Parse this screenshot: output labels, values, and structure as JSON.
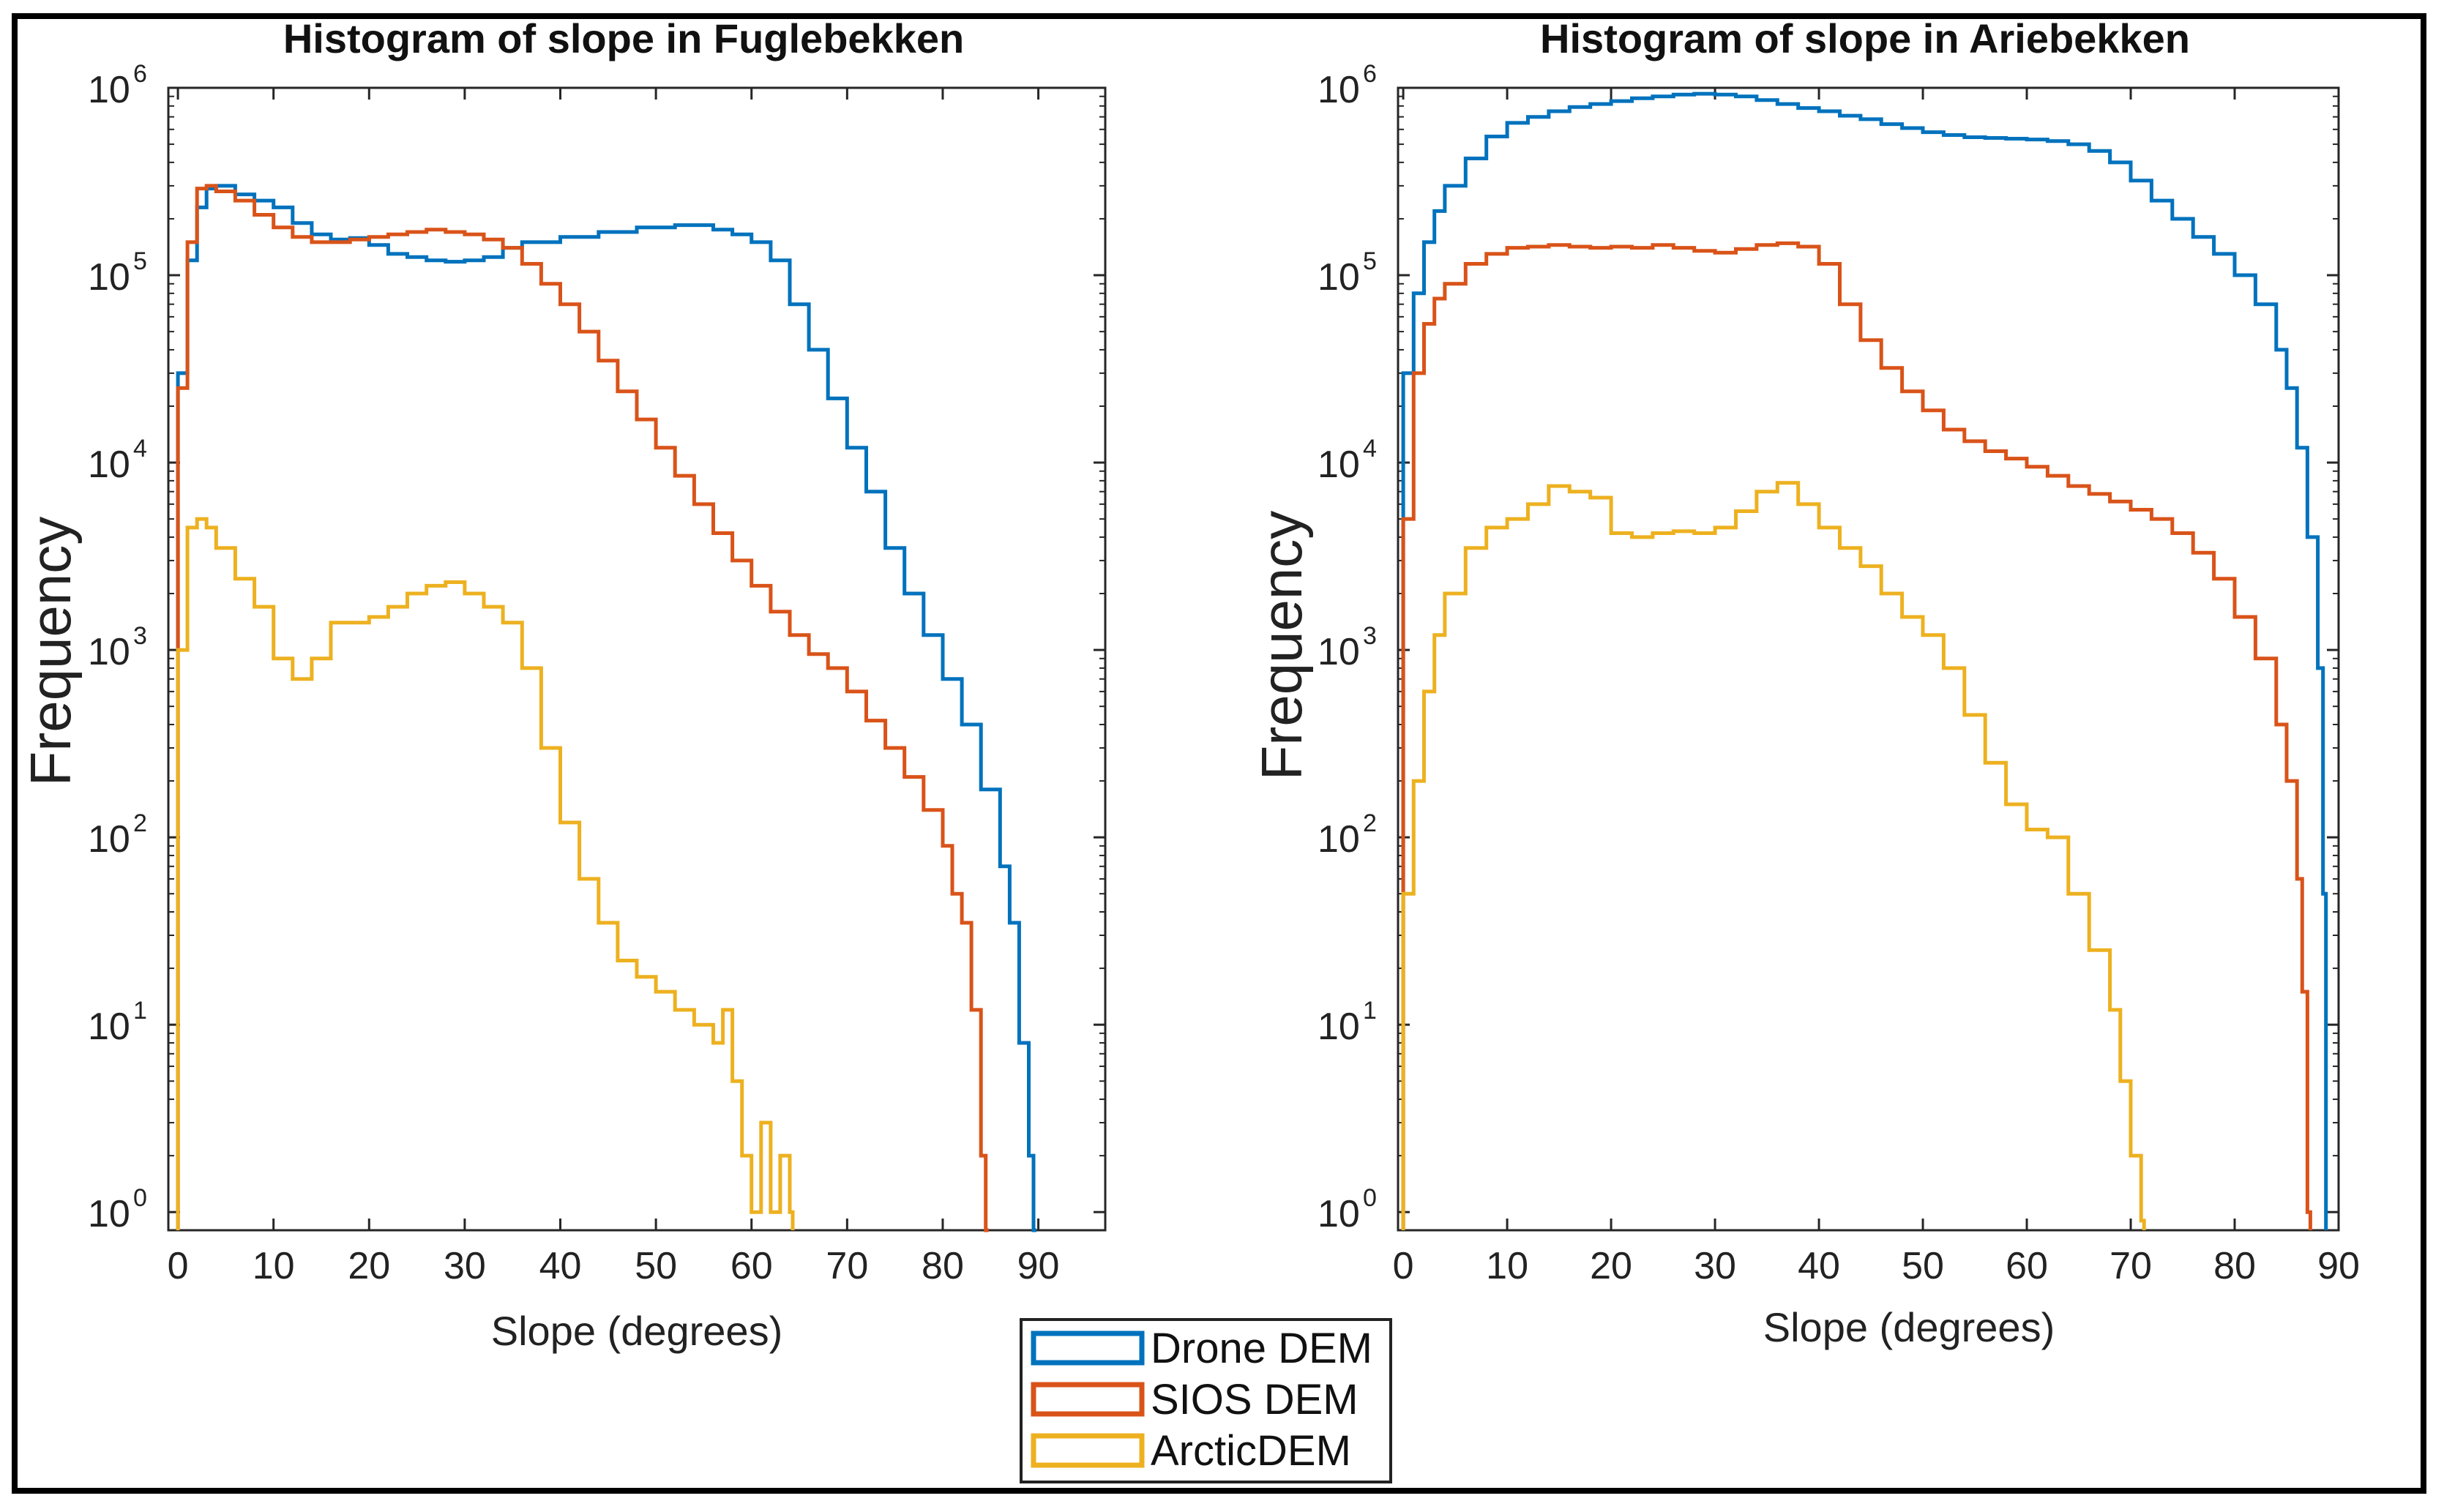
{
  "chart_data": [
    {
      "type": "histogram",
      "title": "Histogram of slope in Fuglebekken",
      "xlabel": "Slope (degrees)",
      "ylabel": "Frequency",
      "yscale": "log",
      "xlim": [
        -1,
        97
      ],
      "ylim": [
        0.8,
        1000000
      ],
      "xticks": [
        0,
        10,
        20,
        30,
        40,
        50,
        60,
        70,
        80,
        90
      ],
      "yticks": [
        {
          "base": "10",
          "exp": "0",
          "value": 1
        },
        {
          "base": "10",
          "exp": "1",
          "value": 10
        },
        {
          "base": "10",
          "exp": "2",
          "value": 100
        },
        {
          "base": "10",
          "exp": "3",
          "value": 1000
        },
        {
          "base": "10",
          "exp": "4",
          "value": 10000
        },
        {
          "base": "10",
          "exp": "5",
          "value": 100000
        },
        {
          "base": "10",
          "exp": "6",
          "value": 1000000
        }
      ],
      "series": [
        {
          "name": "Drone DEM",
          "color": "#0072BD",
          "x": [
            0,
            1,
            2,
            3,
            4,
            6,
            8,
            10,
            12,
            14,
            16,
            18,
            20,
            22,
            24,
            26,
            28,
            30,
            32,
            34,
            36,
            40,
            44,
            48,
            52,
            56,
            58,
            60,
            62,
            64,
            66,
            68,
            70,
            72,
            74,
            76,
            78,
            80,
            82,
            84,
            86,
            87,
            88,
            89,
            89.5
          ],
          "values": [
            30000,
            120000,
            230000,
            290000,
            300000,
            270000,
            250000,
            230000,
            190000,
            165000,
            155000,
            158000,
            145000,
            130000,
            125000,
            120000,
            118000,
            120000,
            125000,
            140000,
            150000,
            160000,
            170000,
            180000,
            185000,
            175000,
            165000,
            150000,
            120000,
            70000,
            40000,
            22000,
            12000,
            7000,
            3500,
            2000,
            1200,
            700,
            400,
            180,
            70,
            35,
            8,
            2,
            0.8
          ]
        },
        {
          "name": "SIOS DEM",
          "color": "#D95319",
          "x": [
            0,
            1,
            2,
            3,
            4,
            6,
            8,
            10,
            12,
            14,
            16,
            18,
            20,
            22,
            24,
            26,
            28,
            30,
            32,
            34,
            36,
            38,
            40,
            42,
            44,
            46,
            48,
            50,
            52,
            54,
            56,
            58,
            60,
            62,
            64,
            66,
            68,
            70,
            72,
            74,
            76,
            78,
            80,
            81,
            82,
            83,
            84,
            84.5
          ],
          "values": [
            25000,
            150000,
            290000,
            300000,
            280000,
            250000,
            210000,
            180000,
            160000,
            150000,
            150000,
            155000,
            160000,
            165000,
            170000,
            175000,
            170000,
            165000,
            155000,
            140000,
            115000,
            90000,
            70000,
            50000,
            35000,
            24000,
            17000,
            12000,
            8500,
            6000,
            4200,
            3000,
            2200,
            1600,
            1200,
            950,
            800,
            600,
            420,
            300,
            210,
            140,
            90,
            50,
            35,
            12,
            2,
            0.8
          ]
        },
        {
          "name": "ArcticDEM",
          "color": "#EDB120",
          "x": [
            0,
            1,
            2,
            3,
            4,
            6,
            8,
            10,
            12,
            14,
            16,
            18,
            20,
            22,
            24,
            26,
            28,
            30,
            32,
            34,
            36,
            38,
            40,
            42,
            44,
            46,
            48,
            50,
            52,
            54,
            56,
            57,
            58,
            59,
            60,
            61,
            62,
            63,
            64
          ],
          "values": [
            1000,
            4500,
            5000,
            4500,
            3500,
            2400,
            1700,
            900,
            700,
            900,
            1400,
            1400,
            1500,
            1700,
            2000,
            2200,
            2300,
            2000,
            1700,
            1400,
            800,
            300,
            120,
            60,
            35,
            22,
            18,
            15,
            12,
            10,
            8,
            12,
            5,
            2,
            1,
            3,
            1,
            2,
            1
          ]
        }
      ]
    },
    {
      "type": "histogram",
      "title": "Histogram of slope in Ariebekken",
      "xlabel": "Slope (degrees)",
      "ylabel": "Frequency",
      "yscale": "log",
      "xlim": [
        -0.5,
        90
      ],
      "ylim": [
        0.8,
        1000000
      ],
      "xticks": [
        0,
        10,
        20,
        30,
        40,
        50,
        60,
        70,
        80,
        90
      ],
      "yticks": [
        {
          "base": "10",
          "exp": "0",
          "value": 1
        },
        {
          "base": "10",
          "exp": "1",
          "value": 10
        },
        {
          "base": "10",
          "exp": "2",
          "value": 100
        },
        {
          "base": "10",
          "exp": "3",
          "value": 1000
        },
        {
          "base": "10",
          "exp": "4",
          "value": 10000
        },
        {
          "base": "10",
          "exp": "5",
          "value": 100000
        },
        {
          "base": "10",
          "exp": "6",
          "value": 1000000
        }
      ],
      "series": [
        {
          "name": "Drone DEM",
          "color": "#0072BD",
          "x": [
            0,
            1,
            2,
            3,
            4,
            6,
            8,
            10,
            12,
            14,
            16,
            18,
            20,
            22,
            24,
            26,
            28,
            30,
            32,
            34,
            36,
            38,
            40,
            42,
            44,
            46,
            48,
            50,
            52,
            54,
            56,
            58,
            60,
            62,
            64,
            66,
            68,
            70,
            72,
            74,
            76,
            78,
            80,
            82,
            84,
            85,
            86,
            87,
            88,
            88.5
          ],
          "values": [
            30000,
            80000,
            150000,
            220000,
            300000,
            420000,
            550000,
            650000,
            700000,
            750000,
            790000,
            820000,
            850000,
            880000,
            900000,
            920000,
            930000,
            920000,
            900000,
            860000,
            820000,
            780000,
            750000,
            710000,
            680000,
            640000,
            610000,
            580000,
            560000,
            545000,
            540000,
            535000,
            530000,
            520000,
            500000,
            460000,
            400000,
            320000,
            250000,
            200000,
            160000,
            130000,
            100000,
            70000,
            40000,
            25000,
            12000,
            4000,
            800,
            50
          ]
        },
        {
          "name": "SIOS DEM",
          "color": "#D95319",
          "x": [
            0,
            1,
            2,
            3,
            4,
            6,
            8,
            10,
            12,
            14,
            16,
            18,
            20,
            22,
            24,
            26,
            28,
            30,
            32,
            34,
            36,
            38,
            40,
            42,
            44,
            46,
            48,
            50,
            52,
            54,
            56,
            58,
            60,
            62,
            64,
            66,
            68,
            70,
            72,
            74,
            76,
            78,
            80,
            82,
            84,
            85,
            86,
            86.5,
            87
          ],
          "values": [
            5000,
            30000,
            55000,
            75000,
            90000,
            115000,
            130000,
            140000,
            142000,
            145000,
            142000,
            140000,
            142000,
            140000,
            145000,
            140000,
            135000,
            132000,
            138000,
            145000,
            148000,
            142000,
            115000,
            70000,
            45000,
            32000,
            24000,
            19000,
            15000,
            13000,
            11500,
            10500,
            9500,
            8500,
            7500,
            6800,
            6200,
            5600,
            5000,
            4200,
            3300,
            2400,
            1500,
            900,
            400,
            200,
            60,
            15,
            1
          ]
        },
        {
          "name": "ArcticDEM",
          "color": "#EDB120",
          "x": [
            0,
            1,
            2,
            3,
            4,
            6,
            8,
            10,
            12,
            14,
            16,
            18,
            20,
            22,
            24,
            26,
            28,
            30,
            32,
            34,
            36,
            38,
            40,
            42,
            44,
            46,
            48,
            50,
            52,
            54,
            56,
            58,
            60,
            62,
            64,
            66,
            68,
            69,
            70,
            71
          ],
          "values": [
            50,
            200,
            600,
            1200,
            2000,
            3500,
            4500,
            5000,
            6000,
            7500,
            7000,
            6500,
            4200,
            4000,
            4200,
            4300,
            4200,
            4500,
            5500,
            7000,
            7800,
            6000,
            4500,
            3500,
            2800,
            2000,
            1500,
            1200,
            800,
            450,
            250,
            150,
            110,
            100,
            50,
            25,
            12,
            5,
            2,
            0.9
          ]
        }
      ]
    }
  ],
  "legend": {
    "position": "bottom-center",
    "items": [
      {
        "label": "Drone DEM",
        "color": "#0072BD"
      },
      {
        "label": "SIOS DEM",
        "color": "#D95319"
      },
      {
        "label": "ArcticDEM",
        "color": "#EDB120"
      }
    ]
  }
}
